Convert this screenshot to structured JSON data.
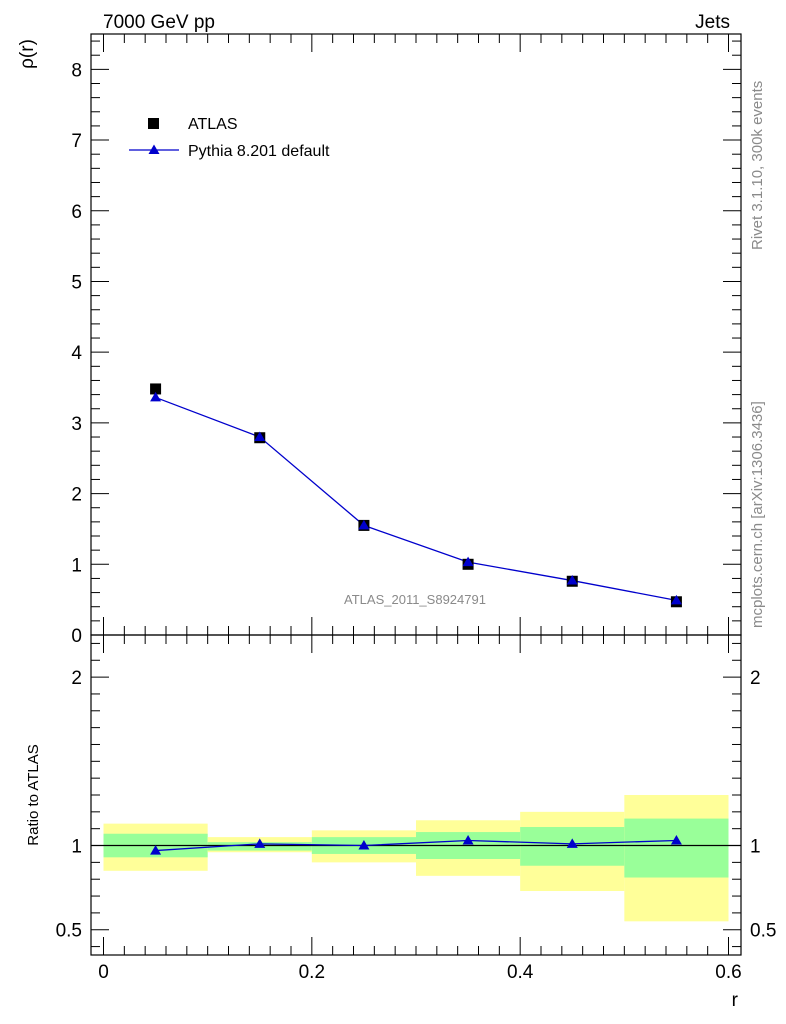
{
  "header": {
    "left_title": "7000 GeV pp",
    "right_title": "Jets"
  },
  "side_text": {
    "rivet": "Rivet 3.1.10,  300k events",
    "mcplots": "mcplots.cern.ch [arXiv:1306.3436]"
  },
  "analysis_label": "ATLAS_2011_S8924791",
  "legend": {
    "data_label": "ATLAS",
    "mc_label": "Pythia 8.201 default"
  },
  "colors": {
    "data": "#000000",
    "mc": "#0000cc",
    "band_inner": "#99ff99",
    "band_outer": "#ffff99"
  },
  "chart_data": {
    "type": "scatter",
    "main": {
      "ylabel": "ρ(r)",
      "ylim": [
        0,
        8.5
      ],
      "yticks": [
        0,
        1,
        2,
        3,
        4,
        5,
        6,
        7,
        8
      ],
      "series": [
        {
          "name": "ATLAS",
          "marker": "square",
          "x": [
            0.05,
            0.15,
            0.25,
            0.35,
            0.45,
            0.55
          ],
          "values": [
            3.48,
            2.79,
            1.55,
            1.0,
            0.76,
            0.47
          ]
        },
        {
          "name": "Pythia 8.201 default",
          "marker": "triangle",
          "x": [
            0.05,
            0.15,
            0.25,
            0.35,
            0.45,
            0.55
          ],
          "values": [
            3.36,
            2.8,
            1.55,
            1.03,
            0.77,
            0.49
          ]
        }
      ]
    },
    "ratio": {
      "ylabel": "Ratio to ATLAS",
      "ylim": [
        0.35,
        2.25
      ],
      "yticks": [
        0.5,
        1,
        2
      ],
      "reference": 1,
      "bins": [
        {
          "x_lo": 0.0,
          "x_hi": 0.1,
          "inner": [
            0.93,
            1.07
          ],
          "outer": [
            0.85,
            1.13
          ]
        },
        {
          "x_lo": 0.1,
          "x_hi": 0.2,
          "inner": [
            0.97,
            1.02
          ],
          "outer": [
            0.96,
            1.05
          ]
        },
        {
          "x_lo": 0.2,
          "x_hi": 0.3,
          "inner": [
            0.95,
            1.05
          ],
          "outer": [
            0.9,
            1.09
          ]
        },
        {
          "x_lo": 0.3,
          "x_hi": 0.4,
          "inner": [
            0.92,
            1.08
          ],
          "outer": [
            0.82,
            1.15
          ]
        },
        {
          "x_lo": 0.4,
          "x_hi": 0.5,
          "inner": [
            0.88,
            1.11
          ],
          "outer": [
            0.73,
            1.2
          ]
        },
        {
          "x_lo": 0.5,
          "x_hi": 0.6,
          "inner": [
            0.81,
            1.16
          ],
          "outer": [
            0.55,
            1.3
          ]
        }
      ],
      "mc_ratio": [
        0.97,
        1.01,
        1.0,
        1.03,
        1.01,
        1.03
      ]
    },
    "xlabel": "r",
    "xlim": [
      -0.012,
      0.612
    ],
    "xticks": [
      0,
      0.2,
      0.4,
      0.6
    ],
    "xtick_labels": [
      "0",
      "0.2",
      "0.4",
      "0.6"
    ],
    "grid": false,
    "legend_position": "top-left"
  }
}
